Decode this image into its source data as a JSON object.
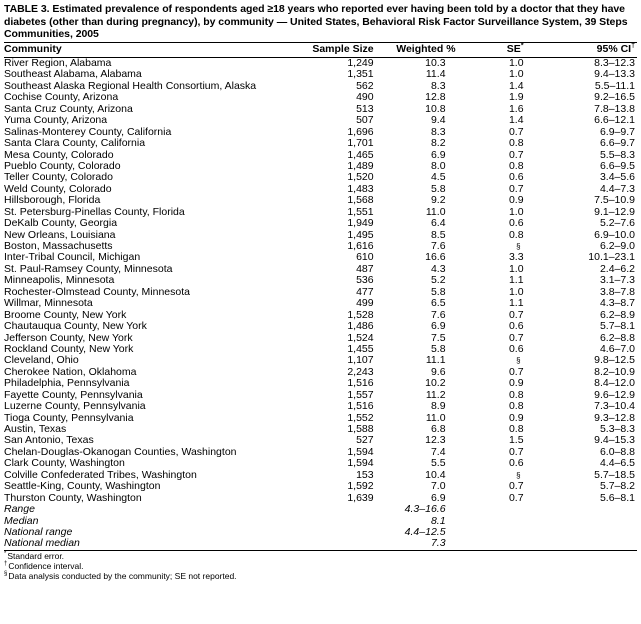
{
  "title": "TABLE 3. Estimated prevalence of respondents aged ≥18 years who reported ever having been told by a doctor that they have diabetes (other than during pregnancy), by community — United States, Behavioral Risk Factor Surveillance System, 39 Steps Communities, 2005",
  "headers": {
    "community": "Community",
    "sample_size": "Sample Size",
    "weighted": "Weighted %",
    "se": "SE",
    "se_mark": "*",
    "ci": "95% CI",
    "ci_mark": "†"
  },
  "rows": [
    {
      "community": "River Region, Alabama",
      "n": "1,249",
      "pct": "10.3",
      "se": "1.0",
      "ci": "8.3–12.3"
    },
    {
      "community": "Southeast Alabama, Alabama",
      "n": "1,351",
      "pct": "11.4",
      "se": "1.0",
      "ci": "9.4–13.3"
    },
    {
      "community": "Southeast Alaska Regional Health Consortium, Alaska",
      "n": "562",
      "pct": "8.3",
      "se": "1.4",
      "ci": "5.5–11.1"
    },
    {
      "community": "Cochise County, Arizona",
      "n": "490",
      "pct": "12.8",
      "se": "1.9",
      "ci": "9.2–16.5"
    },
    {
      "community": "Santa Cruz County, Arizona",
      "n": "513",
      "pct": "10.8",
      "se": "1.6",
      "ci": "7.8–13.8"
    },
    {
      "community": "Yuma County, Arizona",
      "n": "507",
      "pct": "9.4",
      "se": "1.4",
      "ci": "6.6–12.1"
    },
    {
      "community": "Salinas-Monterey County, California",
      "n": "1,696",
      "pct": "8.3",
      "se": "0.7",
      "ci": "6.9–9.7"
    },
    {
      "community": "Santa Clara County, California",
      "n": "1,701",
      "pct": "8.2",
      "se": "0.8",
      "ci": "6.6–9.7"
    },
    {
      "community": "Mesa County, Colorado",
      "n": "1,465",
      "pct": "6.9",
      "se": "0.7",
      "ci": "5.5–8.3"
    },
    {
      "community": "Pueblo County, Colorado",
      "n": "1,489",
      "pct": "8.0",
      "se": "0.8",
      "ci": "6.6–9.5"
    },
    {
      "community": "Teller County, Colorado",
      "n": "1,520",
      "pct": "4.5",
      "se": "0.6",
      "ci": "3.4–5.6"
    },
    {
      "community": "Weld County, Colorado",
      "n": "1,483",
      "pct": "5.8",
      "se": "0.7",
      "ci": "4.4–7.3"
    },
    {
      "community": "Hillsborough, Florida",
      "n": "1,568",
      "pct": "9.2",
      "se": "0.9",
      "ci": "7.5–10.9"
    },
    {
      "community": "St. Petersburg-Pinellas County, Florida",
      "n": "1,551",
      "pct": "11.0",
      "se": "1.0",
      "ci": "9.1–12.9"
    },
    {
      "community": "DeKalb County, Georgia",
      "n": "1,949",
      "pct": "6.4",
      "se": "0.6",
      "ci": "5.2–7.6"
    },
    {
      "community": "New Orleans, Louisiana",
      "n": "1,495",
      "pct": "8.5",
      "se": "0.8",
      "ci": "6.9–10.0"
    },
    {
      "community": "Boston, Massachusetts",
      "n": "1,616",
      "pct": "7.6",
      "se": "§",
      "ci": "6.2–9.0"
    },
    {
      "community": "Inter-Tribal Council, Michigan",
      "n": "610",
      "pct": "16.6",
      "se": "3.3",
      "ci": "10.1–23.1"
    },
    {
      "community": "St. Paul-Ramsey County, Minnesota",
      "n": "487",
      "pct": "4.3",
      "se": "1.0",
      "ci": "2.4–6.2"
    },
    {
      "community": "Minneapolis, Minnesota",
      "n": "536",
      "pct": "5.2",
      "se": "1.1",
      "ci": "3.1–7.3"
    },
    {
      "community": "Rochester-Olmstead County, Minnesota",
      "n": "477",
      "pct": "5.8",
      "se": "1.0",
      "ci": "3.8–7.8"
    },
    {
      "community": "Willmar, Minnesota",
      "n": "499",
      "pct": "6.5",
      "se": "1.1",
      "ci": "4.3–8.7"
    },
    {
      "community": "Broome County, New York",
      "n": "1,528",
      "pct": "7.6",
      "se": "0.7",
      "ci": "6.2–8.9"
    },
    {
      "community": "Chautauqua County, New York",
      "n": "1,486",
      "pct": "6.9",
      "se": "0.6",
      "ci": "5.7–8.1"
    },
    {
      "community": "Jefferson County, New York",
      "n": "1,524",
      "pct": "7.5",
      "se": "0.7",
      "ci": "6.2–8.8"
    },
    {
      "community": "Rockland County, New York",
      "n": "1,455",
      "pct": "5.8",
      "se": "0.6",
      "ci": "4.6–7.0"
    },
    {
      "community": "Cleveland, Ohio",
      "n": "1,107",
      "pct": "11.1",
      "se": "§",
      "ci": "9.8–12.5"
    },
    {
      "community": "Cherokee Nation, Oklahoma",
      "n": "2,243",
      "pct": "9.6",
      "se": "0.7",
      "ci": "8.2–10.9"
    },
    {
      "community": "Philadelphia, Pennsylvania",
      "n": "1,516",
      "pct": "10.2",
      "se": "0.9",
      "ci": "8.4–12.0"
    },
    {
      "community": "Fayette County, Pennsylvania",
      "n": "1,557",
      "pct": "11.2",
      "se": "0.8",
      "ci": "9.6–12.9"
    },
    {
      "community": "Luzerne County, Pennsylvania",
      "n": "1,516",
      "pct": "8.9",
      "se": "0.8",
      "ci": "7.3–10.4"
    },
    {
      "community": "Tioga County, Pennsylvania",
      "n": "1,552",
      "pct": "11.0",
      "se": "0.9",
      "ci": "9.3–12.8"
    },
    {
      "community": "Austin, Texas",
      "n": "1,588",
      "pct": "6.8",
      "se": "0.8",
      "ci": "5.3–8.3"
    },
    {
      "community": "San Antonio, Texas",
      "n": "527",
      "pct": "12.3",
      "se": "1.5",
      "ci": "9.4–15.3"
    },
    {
      "community": "Chelan-Douglas-Okanogan Counties, Washington",
      "n": "1,594",
      "pct": "7.4",
      "se": "0.7",
      "ci": "6.0–8.8"
    },
    {
      "community": "Clark County, Washington",
      "n": "1,594",
      "pct": "5.5",
      "se": "0.6",
      "ci": "4.4–6.5"
    },
    {
      "community": "Colville Confederated Tribes, Washington",
      "n": "153",
      "pct": "10.4",
      "se": "§",
      "ci": "5.7–18.5"
    },
    {
      "community": "Seattle-King, County, Washington",
      "n": "1,592",
      "pct": "7.0",
      "se": "0.7",
      "ci": "5.7–8.2"
    },
    {
      "community": "Thurston County, Washington",
      "n": "1,639",
      "pct": "6.9",
      "se": "0.7",
      "ci": "5.6–8.1"
    }
  ],
  "summary": [
    {
      "label": "Range",
      "value": "4.3–16.6"
    },
    {
      "label": "Median",
      "value": "8.1"
    },
    {
      "label": "National range",
      "value": "4.4–12.5"
    },
    {
      "label": "National median",
      "value": "7.3"
    }
  ],
  "footnotes": [
    {
      "mark": "*",
      "text": "Standard error."
    },
    {
      "mark": "†",
      "text": "Confidence interval."
    },
    {
      "mark": "§",
      "text": "Data analysis conducted by the community; SE not reported."
    }
  ]
}
